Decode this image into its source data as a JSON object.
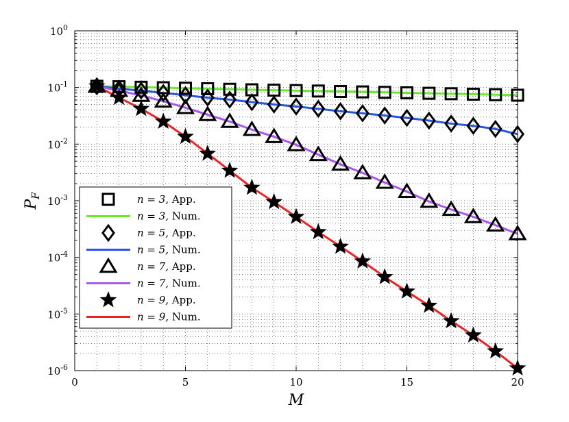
{
  "chart_data": {
    "type": "line",
    "xlabel": "M",
    "ylabel": "P",
    "ylabel_sub": "F",
    "xlim": [
      0,
      20
    ],
    "ylim": [
      1e-06,
      1
    ],
    "yscale": "log",
    "grid": true,
    "legend_position": "bottom-left",
    "x_ticks": [
      "0",
      "5",
      "10",
      "15",
      "20"
    ],
    "y_ticks": [
      {
        "base": "10",
        "exp": "0"
      },
      {
        "base": "10",
        "exp": "-1"
      },
      {
        "base": "10",
        "exp": "-2"
      },
      {
        "base": "10",
        "exp": "-3"
      },
      {
        "base": "10",
        "exp": "-4"
      },
      {
        "base": "10",
        "exp": "-5"
      },
      {
        "base": "10",
        "exp": "-6"
      }
    ],
    "x": [
      1,
      2,
      3,
      4,
      5,
      6,
      7,
      8,
      9,
      10,
      11,
      12,
      13,
      14,
      15,
      16,
      17,
      18,
      19,
      20
    ],
    "series": [
      {
        "name": "n = 3, App.",
        "kind": "markers",
        "marker": "square",
        "color": "#000000",
        "values": [
          0.105,
          0.103,
          0.101,
          0.099,
          0.097,
          0.095,
          0.093,
          0.091,
          0.0895,
          0.088,
          0.0865,
          0.085,
          0.0835,
          0.082,
          0.0805,
          0.079,
          0.0775,
          0.076,
          0.0745,
          0.073
        ]
      },
      {
        "name": "n = 3, Num.",
        "kind": "line",
        "color": "#66ee22",
        "values": [
          0.105,
          0.103,
          0.101,
          0.099,
          0.097,
          0.095,
          0.093,
          0.091,
          0.0895,
          0.088,
          0.0865,
          0.085,
          0.0835,
          0.082,
          0.0805,
          0.079,
          0.0775,
          0.076,
          0.0745,
          0.073
        ]
      },
      {
        "name": "n = 5, App.",
        "kind": "markers",
        "marker": "diamond",
        "color": "#000000",
        "values": [
          0.105,
          0.095,
          0.088,
          0.08,
          0.073,
          0.066,
          0.061,
          0.055,
          0.05,
          0.046,
          0.042,
          0.038,
          0.035,
          0.032,
          0.029,
          0.026,
          0.023,
          0.021,
          0.0185,
          0.015
        ]
      },
      {
        "name": "n = 5, Num.",
        "kind": "line",
        "color": "#2255ee",
        "values": [
          0.105,
          0.095,
          0.088,
          0.08,
          0.073,
          0.066,
          0.061,
          0.055,
          0.05,
          0.046,
          0.042,
          0.038,
          0.035,
          0.032,
          0.029,
          0.026,
          0.023,
          0.021,
          0.0185,
          0.015
        ]
      },
      {
        "name": "n = 7, App.",
        "kind": "markers",
        "marker": "triangle",
        "color": "#000000",
        "values": [
          0.105,
          0.088,
          0.072,
          0.057,
          0.044,
          0.033,
          0.025,
          0.018,
          0.0135,
          0.0097,
          0.0065,
          0.0044,
          0.0031,
          0.0021,
          0.00145,
          0.00097,
          0.0007,
          0.00052,
          0.00037,
          0.00026
        ]
      },
      {
        "name": "n = 7, Num.",
        "kind": "line",
        "color": "#aa55ee",
        "values": [
          0.105,
          0.088,
          0.072,
          0.057,
          0.044,
          0.033,
          0.025,
          0.018,
          0.0135,
          0.0097,
          0.0065,
          0.0044,
          0.0031,
          0.0021,
          0.00145,
          0.00097,
          0.0007,
          0.00052,
          0.00037,
          0.00026
        ]
      },
      {
        "name": "n = 9, App.",
        "kind": "markers",
        "marker": "star",
        "color": "#000000",
        "values": [
          0.105,
          0.066,
          0.042,
          0.025,
          0.0135,
          0.0068,
          0.0034,
          0.0017,
          0.00095,
          0.00052,
          0.00028,
          0.000155,
          8.5e-05,
          4.5e-05,
          2.5e-05,
          1.4e-05,
          7.5e-06,
          4.2e-06,
          2.2e-06,
          1.1e-06
        ]
      },
      {
        "name": "n = 9, Num.",
        "kind": "line",
        "color": "#ee2222",
        "values": [
          0.105,
          0.066,
          0.042,
          0.025,
          0.0135,
          0.0068,
          0.0034,
          0.0017,
          0.00095,
          0.00052,
          0.00028,
          0.000155,
          8.5e-05,
          4.5e-05,
          2.5e-05,
          1.4e-05,
          7.5e-06,
          4.2e-06,
          2.2e-06,
          1.1e-06
        ]
      }
    ],
    "legend": [
      {
        "label": "n = 3, App.",
        "math": "n = 3,",
        "text": "App."
      },
      {
        "label": "n = 3, Num.",
        "math": "n = 3,",
        "text": "Num."
      },
      {
        "label": "n = 5, App.",
        "math": "n = 5,",
        "text": "App."
      },
      {
        "label": "n = 5, Num.",
        "math": "n = 5,",
        "text": "Num."
      },
      {
        "label": "n = 7, App.",
        "math": "n = 7,",
        "text": "App."
      },
      {
        "label": "n = 7, Num.",
        "math": "n = 7,",
        "text": "Num."
      },
      {
        "label": "n = 9, App.",
        "math": "n = 9,",
        "text": "App."
      },
      {
        "label": "n = 9, Num.",
        "math": "n = 9,",
        "text": "Num."
      }
    ]
  }
}
